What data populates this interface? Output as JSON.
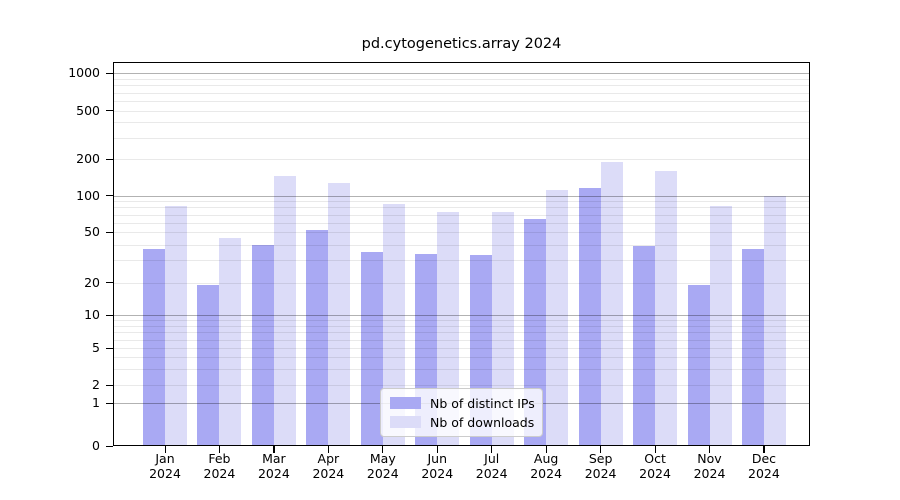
{
  "chart_data": {
    "type": "bar",
    "title": "pd.cytogenetics.array 2024",
    "categories": [
      "Jan",
      "Feb",
      "Mar",
      "Apr",
      "May",
      "Jun",
      "Jul",
      "Aug",
      "Sep",
      "Oct",
      "Nov",
      "Dec"
    ],
    "category_year": "2024",
    "series": [
      {
        "name": "Nb of distinct IPs",
        "color": "#a9a9f3",
        "values": [
          37,
          19,
          40,
          52,
          35,
          34,
          33,
          64,
          115,
          39,
          19,
          37
        ]
      },
      {
        "name": "Nb of downloads",
        "color": "#dcdcf8",
        "values": [
          82,
          45,
          145,
          127,
          85,
          73,
          74,
          112,
          190,
          158,
          82,
          100
        ]
      }
    ],
    "yscale": "symlog",
    "y_ticks": [
      0,
      1,
      2,
      5,
      10,
      20,
      50,
      100,
      200,
      500,
      1000
    ],
    "ylim": [
      0,
      1250
    ],
    "xlabel": "",
    "ylabel": "",
    "grid": "horizontal major+minor, drawn over bars",
    "legend_position": "lower center",
    "background_color": "#ffffff",
    "text_color": "#000000"
  }
}
